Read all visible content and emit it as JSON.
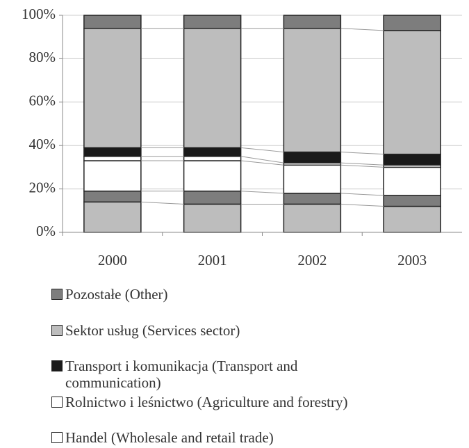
{
  "chart_data": {
    "type": "stacked_bar_100",
    "categories": [
      "2000",
      "2001",
      "2002",
      "2003"
    ],
    "series": [
      {
        "color": "#bdbdbd",
        "values": [
          14,
          13,
          13,
          12
        ]
      },
      {
        "color": "#7d7d7d",
        "values": [
          5,
          6,
          5,
          5
        ]
      },
      {
        "name": "Handel (Wholesale and retail trade)",
        "color": "#ffffff",
        "values": [
          14,
          14,
          13,
          13
        ]
      },
      {
        "name": "Rolnictwo i leśnictwo (Agriculture and forestry)",
        "color": "#ffffff",
        "values": [
          2,
          2,
          1,
          1
        ]
      },
      {
        "name": "Transport i komunikacja (Transport and communication)",
        "color": "#1a1a1a",
        "values": [
          4,
          4,
          5,
          5
        ]
      },
      {
        "name": "Sektor usług (Services sector)",
        "color": "#bdbdbd",
        "values": [
          55,
          55,
          57,
          57
        ]
      },
      {
        "name": "Pozostałe (Other)",
        "color": "#7d7d7d",
        "values": [
          6,
          6,
          6,
          7
        ]
      }
    ],
    "ylim": [
      0,
      100
    ],
    "yticks": [
      {
        "value": 0,
        "label": "0%"
      },
      {
        "value": 20,
        "label": "20%"
      },
      {
        "value": 40,
        "label": "40%"
      },
      {
        "value": 60,
        "label": "60%"
      },
      {
        "value": 80,
        "label": "80%"
      },
      {
        "value": 100,
        "label": "100%"
      }
    ],
    "grid": true
  }
}
